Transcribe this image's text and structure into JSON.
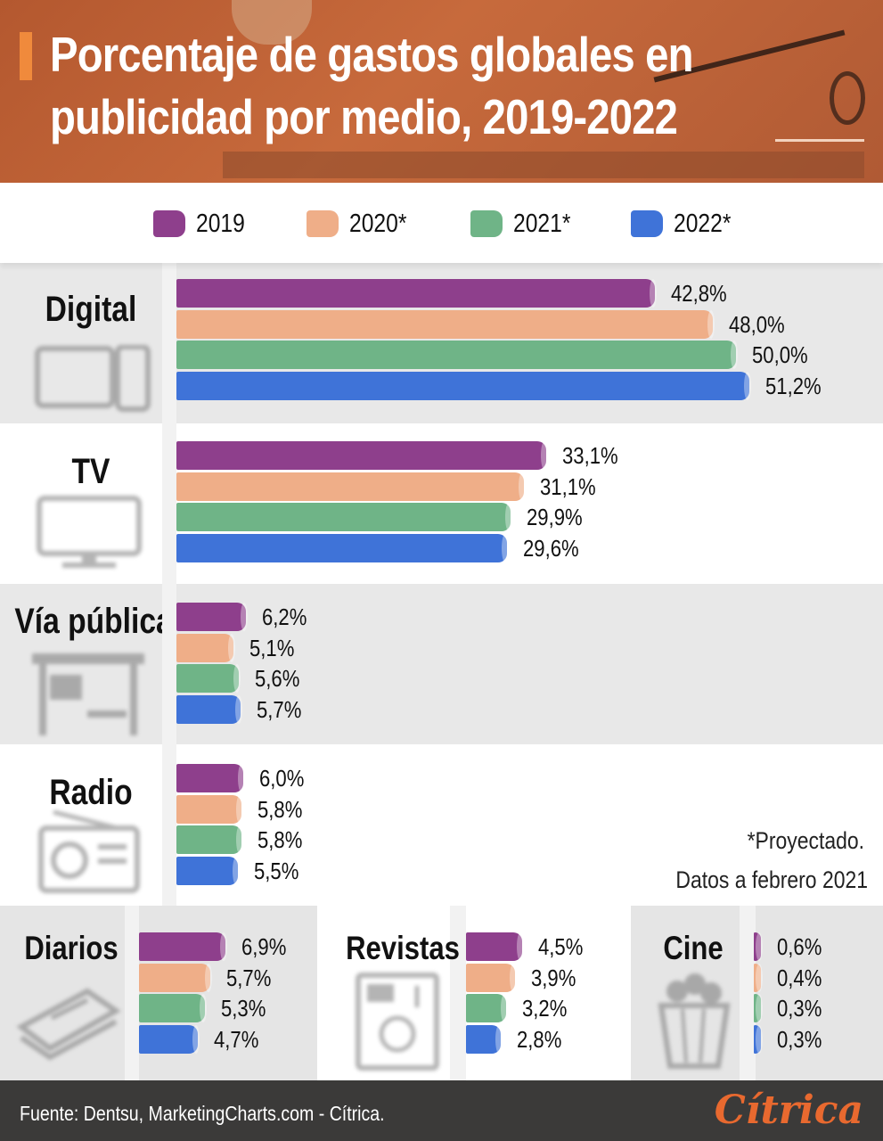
{
  "header": {
    "title_line1": "Porcentaje de gastos globales en",
    "title_line2": "publicidad por medio, 2019-2022"
  },
  "colors": {
    "2019": "#8e3f8c",
    "2020": "#efae88",
    "2021": "#6fb487",
    "2022": "#3f73d8",
    "header_bg": "#b85c33",
    "accent": "#f08a3c",
    "footer_bg": "#3b3a39",
    "brand": "#e8692f"
  },
  "legend": [
    {
      "label": "2019",
      "color": "#8e3f8c"
    },
    {
      "label": "2020*",
      "color": "#efae88"
    },
    {
      "label": "2021*",
      "color": "#6fb487"
    },
    {
      "label": "2022*",
      "color": "#3f73d8"
    }
  ],
  "chart_data": {
    "type": "bar",
    "orientation": "horizontal",
    "title": "Porcentaje de gastos globales en publicidad por medio, 2019-2022",
    "series_names": [
      "2019",
      "2020*",
      "2021*",
      "2022*"
    ],
    "unit": "%",
    "categories": [
      {
        "name": "Digital",
        "icon": "devices-icon",
        "values": [
          42.8,
          48.0,
          50.0,
          51.2
        ],
        "labels": [
          "42,8%",
          "48,0%",
          "50,0%",
          "51,2%"
        ]
      },
      {
        "name": "TV",
        "icon": "tv-icon",
        "values": [
          33.1,
          31.1,
          29.9,
          29.6
        ],
        "labels": [
          "33,1%",
          "31,1%",
          "29,9%",
          "29,6%"
        ]
      },
      {
        "name": "Vía pública",
        "icon": "bus-stop-icon",
        "values": [
          6.2,
          5.1,
          5.6,
          5.7
        ],
        "labels": [
          "6,2%",
          "5,1%",
          "5,6%",
          "5,7%"
        ]
      },
      {
        "name": "Radio",
        "icon": "radio-icon",
        "values": [
          6.0,
          5.8,
          5.8,
          5.5
        ],
        "labels": [
          "6,0%",
          "5,8%",
          "5,8%",
          "5,5%"
        ]
      },
      {
        "name": "Diarios",
        "icon": "newspaper-icon",
        "values": [
          6.9,
          5.7,
          5.3,
          4.7
        ],
        "labels": [
          "6,9%",
          "5,7%",
          "5,3%",
          "4,7%"
        ]
      },
      {
        "name": "Revistas",
        "icon": "magazine-icon",
        "values": [
          4.5,
          3.9,
          3.2,
          2.8
        ],
        "labels": [
          "4,5%",
          "3,9%",
          "3,2%",
          "2,8%"
        ]
      },
      {
        "name": "Cine",
        "icon": "popcorn-icon",
        "values": [
          0.6,
          0.4,
          0.3,
          0.3
        ],
        "labels": [
          "0,6%",
          "0,4%",
          "0,3%",
          "0,3%"
        ]
      }
    ],
    "legend_position": "top",
    "grid": false
  },
  "note": {
    "line1": "*Proyectado.",
    "line2": "Datos a febrero 2021"
  },
  "footer": {
    "source": "Fuente: Dentsu, MarketingCharts.com - Cítrica.",
    "brand": "Cítrica"
  }
}
